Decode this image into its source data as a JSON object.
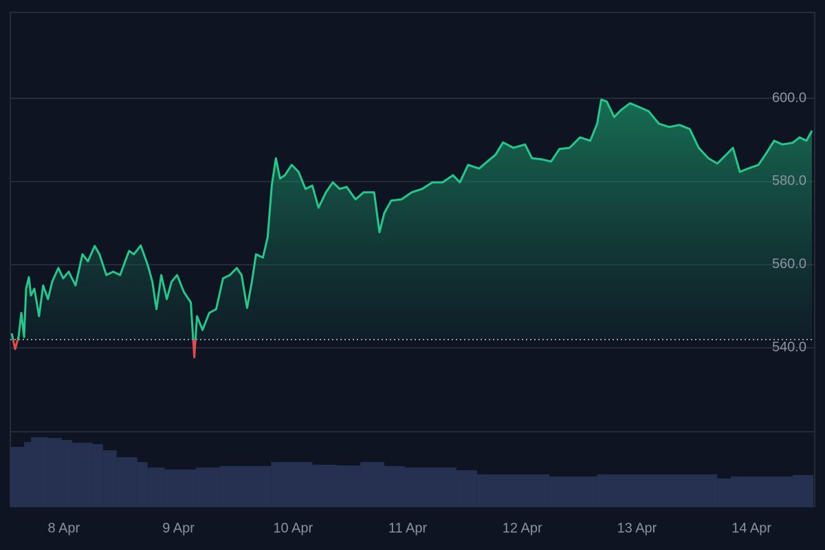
{
  "chart_data": {
    "type": "area",
    "x": [
      7.545,
      7.575,
      7.605,
      7.629,
      7.653,
      7.671,
      7.695,
      7.713,
      7.743,
      7.784,
      7.82,
      7.862,
      7.898,
      7.952,
      7.994,
      8.042,
      8.102,
      8.162,
      8.21,
      8.269,
      8.311,
      8.371,
      8.431,
      8.491,
      8.569,
      8.611,
      8.671,
      8.731,
      8.772,
      8.808,
      8.85,
      8.898,
      8.94,
      8.988,
      9.048,
      9.108,
      9.138,
      9.162,
      9.21,
      9.269,
      9.329,
      9.389,
      9.449,
      9.509,
      9.551,
      9.599,
      9.641,
      9.677,
      9.737,
      9.778,
      9.814,
      9.85,
      9.886,
      9.928,
      9.988,
      10.048,
      10.108,
      10.168,
      10.222,
      10.287,
      10.347,
      10.407,
      10.467,
      10.545,
      10.617,
      10.707,
      10.754,
      10.796,
      10.856,
      10.946,
      11.036,
      11.126,
      11.216,
      11.305,
      11.395,
      11.455,
      11.527,
      11.623,
      11.695,
      11.766,
      11.832,
      11.922,
      12.024,
      12.084,
      12.174,
      12.251,
      12.323,
      12.413,
      12.503,
      12.593,
      12.653,
      12.689,
      12.737,
      12.802,
      12.862,
      12.94,
      13.012,
      13.102,
      13.192,
      13.281,
      13.371,
      13.461,
      13.539,
      13.623,
      13.701,
      13.778,
      13.838,
      13.898,
      13.97,
      14.06,
      14.12,
      14.198,
      14.269,
      14.359,
      14.419,
      14.479,
      14.527
    ],
    "values": [
      543.5,
      539.7,
      542.6,
      548.4,
      542.6,
      554.2,
      557.0,
      552.6,
      554.2,
      547.6,
      555.0,
      551.7,
      555.9,
      559.2,
      556.7,
      558.3,
      555.0,
      562.5,
      560.8,
      564.5,
      562.5,
      557.5,
      558.3,
      557.5,
      563.3,
      562.5,
      564.6,
      560.0,
      555.9,
      549.3,
      557.5,
      551.7,
      555.9,
      557.5,
      553.4,
      550.9,
      537.7,
      547.6,
      544.3,
      548.4,
      549.3,
      556.7,
      557.5,
      559.2,
      557.5,
      549.6,
      555.9,
      562.5,
      561.7,
      566.6,
      579.0,
      585.6,
      580.7,
      581.5,
      584.0,
      582.3,
      578.2,
      579.0,
      573.7,
      577.4,
      579.8,
      578.2,
      578.7,
      575.7,
      577.4,
      577.4,
      567.8,
      572.4,
      575.4,
      575.7,
      577.4,
      578.2,
      579.8,
      579.8,
      581.5,
      579.8,
      584.0,
      583.1,
      584.8,
      586.4,
      589.4,
      588.1,
      588.9,
      585.6,
      585.3,
      584.8,
      587.8,
      588.1,
      590.6,
      589.8,
      593.9,
      599.7,
      599.2,
      595.5,
      597.2,
      598.8,
      598.0,
      596.9,
      593.9,
      593.1,
      593.6,
      592.6,
      588.1,
      585.6,
      584.3,
      586.4,
      588.1,
      582.3,
      583.1,
      584.0,
      586.4,
      589.8,
      588.9,
      589.3,
      590.6,
      589.8,
      592.2
    ],
    "baseline": 542.0,
    "up_color": "#22c98a",
    "down_color": "#e5484d",
    "xlim": [
      7.533,
      14.551
    ],
    "xticks": [
      {
        "value": 8,
        "label": "8 Apr"
      },
      {
        "value": 9,
        "label": "9 Apr"
      },
      {
        "value": 10,
        "label": "10 Apr"
      },
      {
        "value": 11,
        "label": "11 Apr"
      },
      {
        "value": 12,
        "label": "12 Apr"
      },
      {
        "value": 13,
        "label": "13 Apr"
      },
      {
        "value": 14,
        "label": "14 Apr"
      }
    ],
    "ylim": [
      501.8,
      620.66
    ],
    "yticks": [
      {
        "value": 540,
        "label": "540.0"
      },
      {
        "value": 560,
        "label": "560.0"
      },
      {
        "value": 580,
        "label": "580.0"
      },
      {
        "value": 600,
        "label": "600.0"
      }
    ],
    "grid": true,
    "volume": {
      "bins": [
        7.533,
        7.653,
        7.713,
        7.862,
        7.982,
        8.072,
        8.251,
        8.341,
        8.461,
        8.641,
        8.731,
        8.88,
        9.15,
        9.359,
        9.808,
        10.168,
        10.377,
        10.587,
        10.796,
        10.976,
        11.425,
        11.605,
        12.234,
        12.653,
        13.701,
        13.82,
        14.359,
        14.539
      ],
      "values": [
        87,
        94,
        101,
        100,
        97,
        93,
        91,
        82,
        72,
        65,
        57,
        54,
        57,
        59,
        65,
        61,
        60,
        65,
        59,
        57,
        53,
        47,
        44,
        47,
        41,
        44,
        46
      ],
      "vlim": [
        0,
        109
      ],
      "color": "#263152"
    }
  }
}
